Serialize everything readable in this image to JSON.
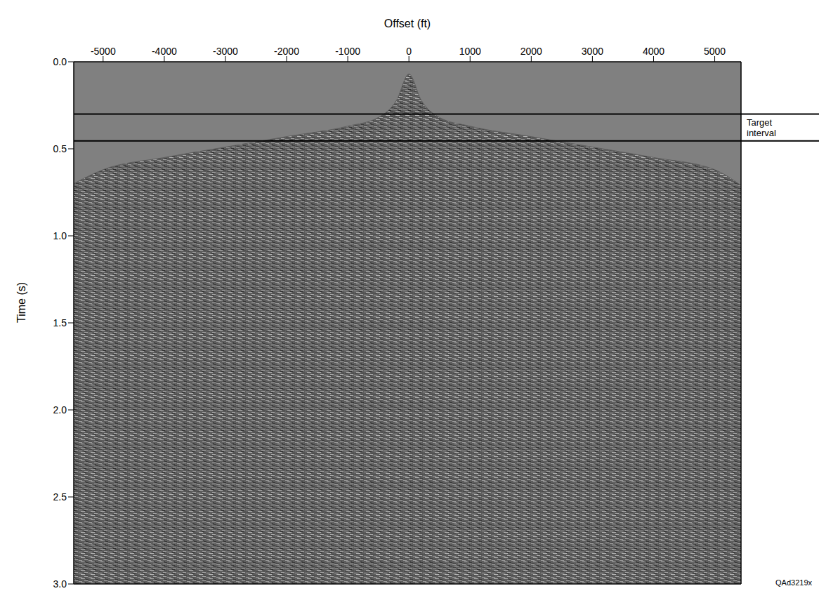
{
  "chart_data": {
    "type": "area",
    "x_label": "Offset (ft)",
    "y_label": "Time (s)",
    "x": [
      -5480,
      -5000,
      -4000,
      -3000,
      -2000,
      -1000,
      -500,
      -200,
      0,
      200,
      500,
      1000,
      2000,
      3000,
      4000,
      5000,
      5430
    ],
    "values": [
      0.7,
      0.62,
      0.55,
      0.49,
      0.43,
      0.37,
      0.32,
      0.22,
      0.07,
      0.22,
      0.32,
      0.37,
      0.43,
      0.49,
      0.55,
      0.62,
      0.71
    ],
    "color": "#5e5e5e",
    "xlim": [
      -5480,
      5430
    ],
    "xticks": [
      -5000,
      -4000,
      -3000,
      -2000,
      -1000,
      0,
      1000,
      2000,
      3000,
      4000,
      5000
    ],
    "ylim": [
      0,
      3
    ],
    "yticks": [
      {
        "value": 0,
        "label": "0.0"
      },
      {
        "value": 0.5,
        "label": "0.5"
      },
      {
        "value": 1,
        "label": "1.0"
      },
      {
        "value": 1.5,
        "label": "1.5"
      },
      {
        "value": 2,
        "label": "2.0"
      },
      {
        "value": 2.5,
        "label": "2.5"
      },
      {
        "value": 3,
        "label": "3.0"
      }
    ],
    "reference_lines": [
      0.3,
      0.455
    ],
    "annotation": "Target interval",
    "figure_id": "QAd3219x",
    "grid": false
  }
}
